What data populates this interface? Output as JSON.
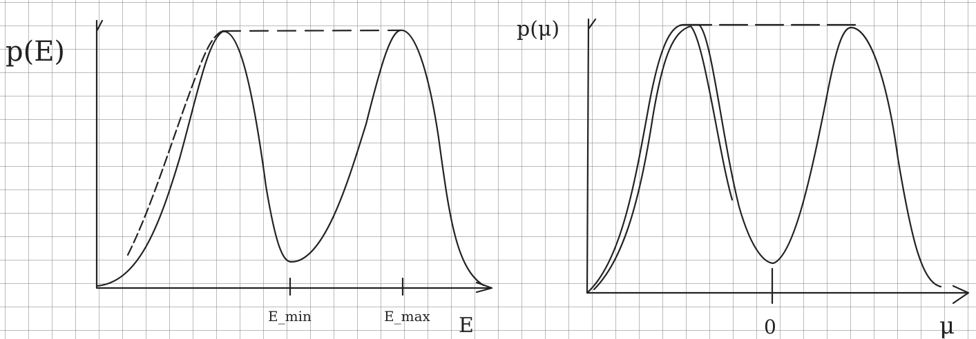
{
  "left_plot": {
    "y_label": "p(E)",
    "ticks": [
      "E_min",
      "E_max"
    ],
    "x_label": "E"
  },
  "right_plot": {
    "y_label": "p(μ)",
    "ticks": [
      "0"
    ],
    "x_label": "μ"
  }
}
